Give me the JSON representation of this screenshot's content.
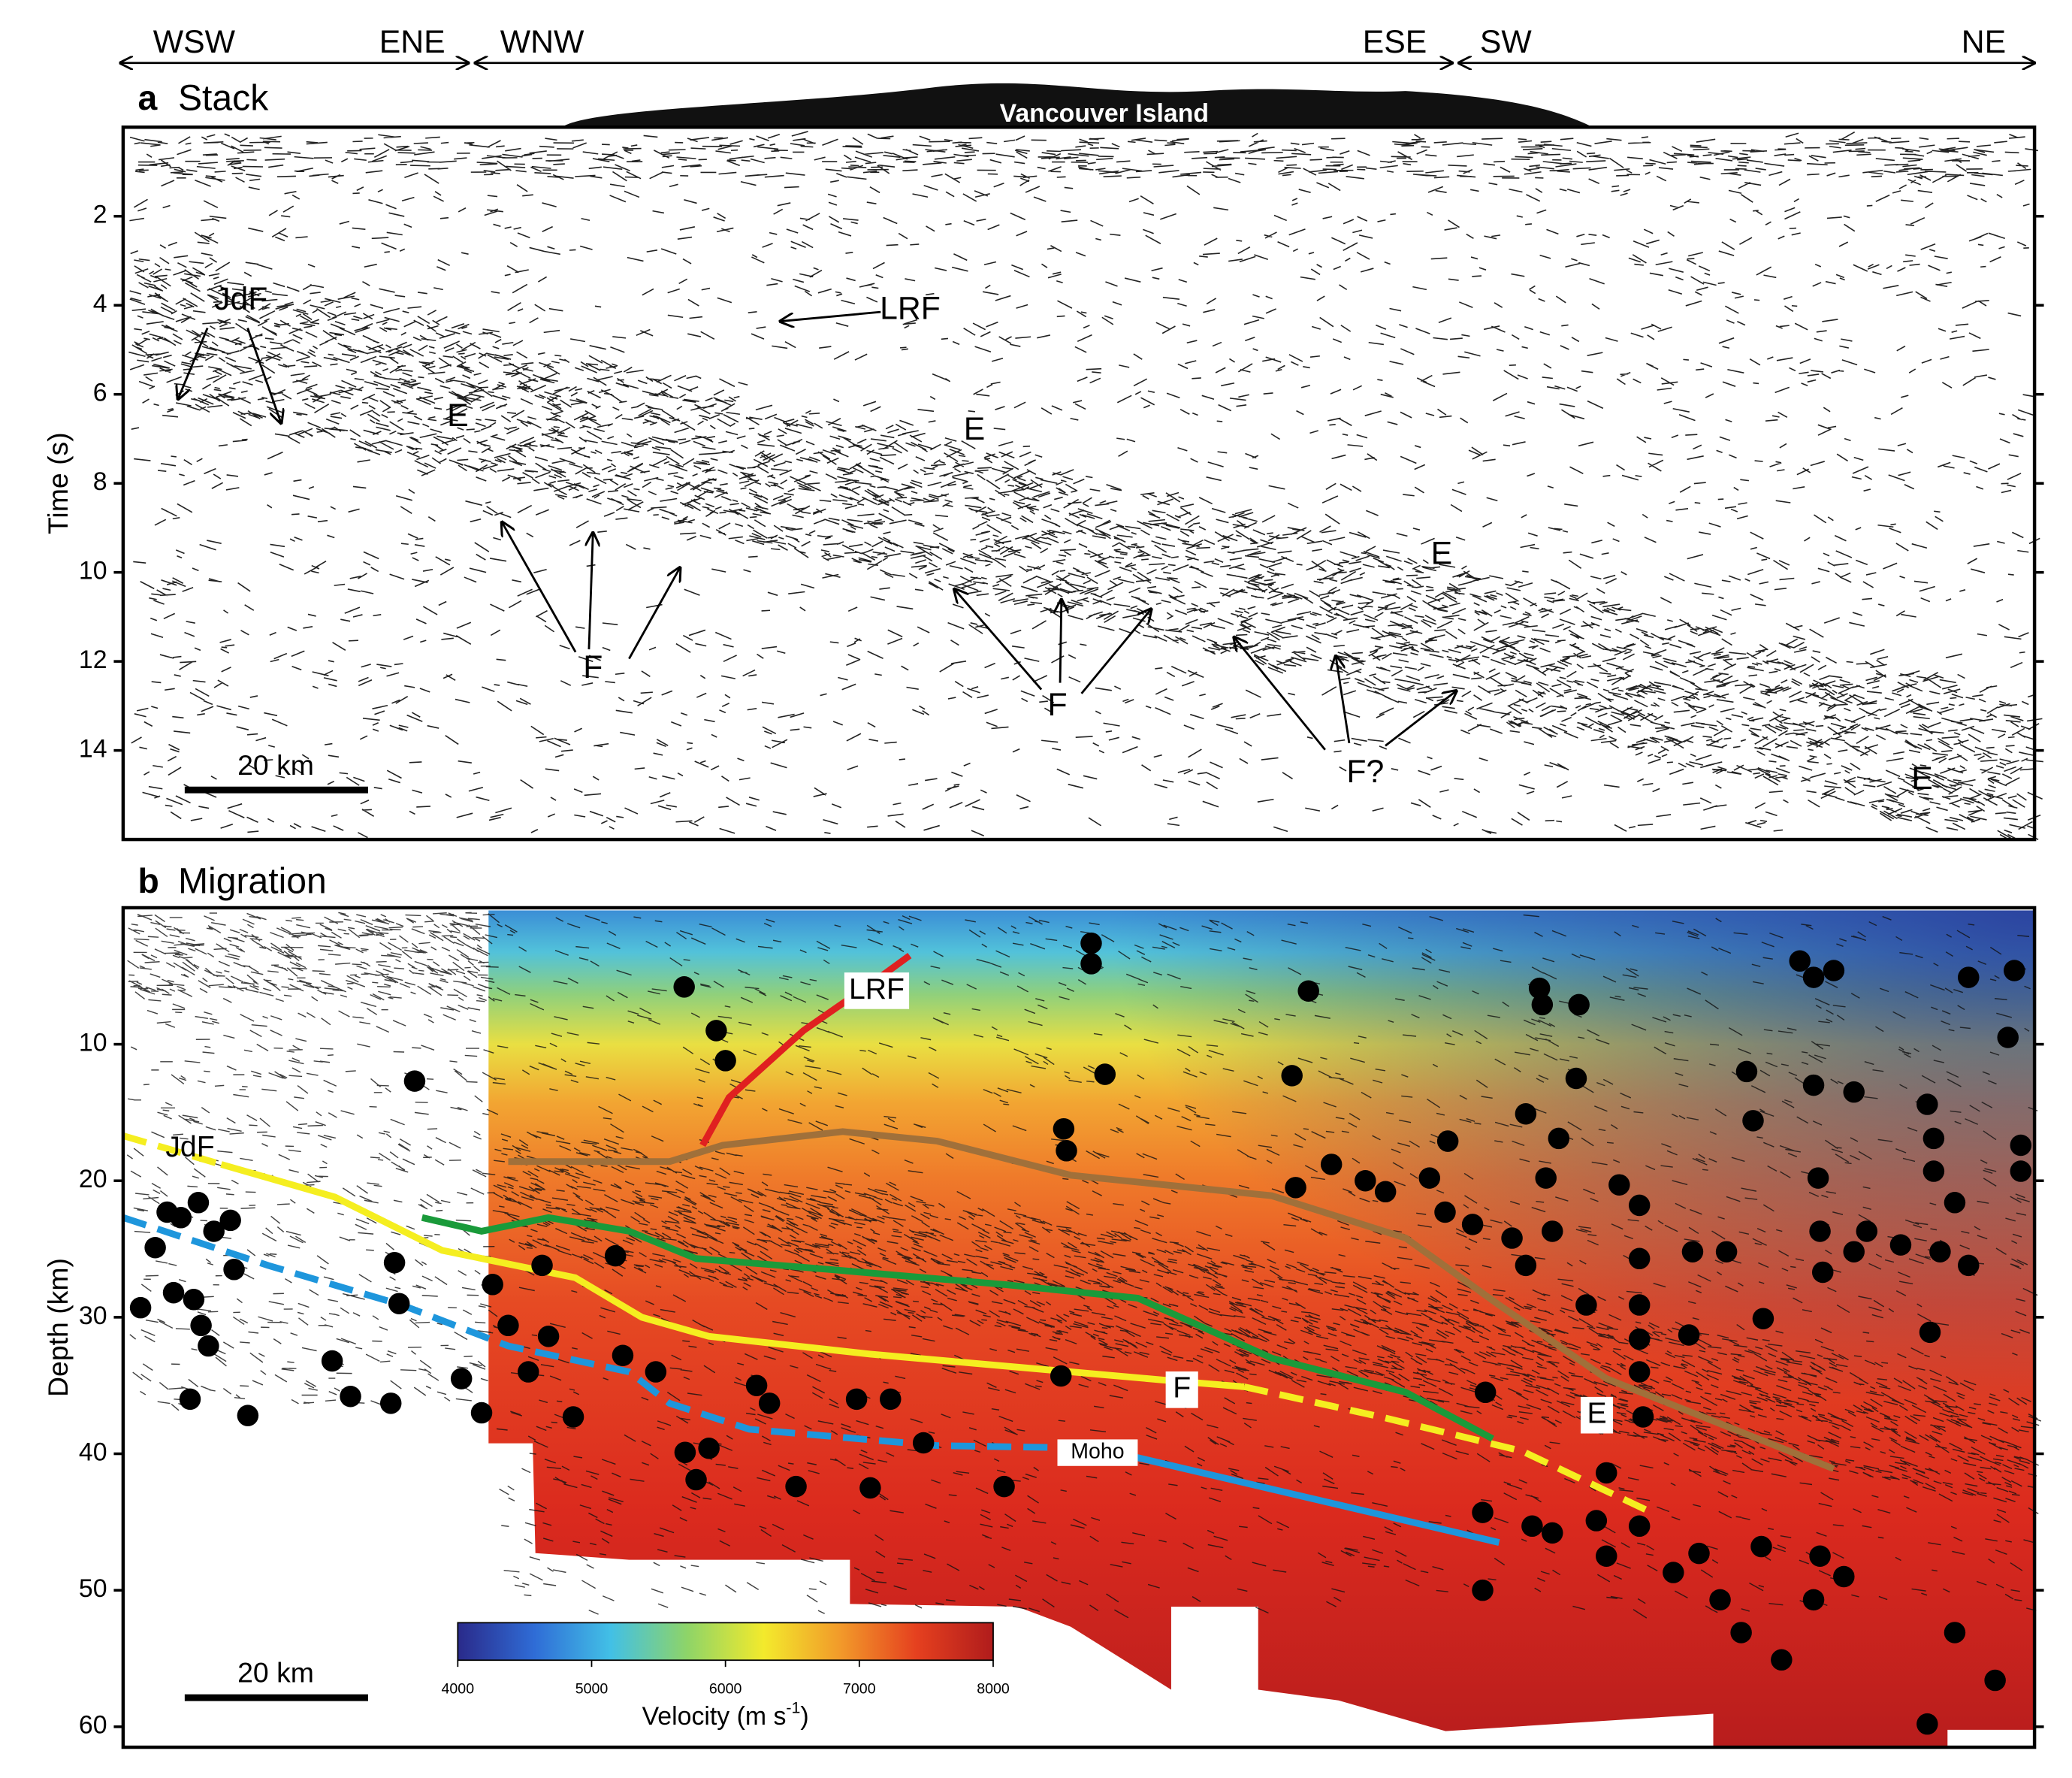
{
  "header": {
    "directions": [
      "WSW",
      "ENE",
      "WNW",
      "ESE",
      "SW",
      "NE"
    ],
    "island": "Vancouver Island"
  },
  "chart_data": [
    {
      "type": "image",
      "panel": "a",
      "title": "Stack",
      "ylabel": "Time (s)",
      "ylim": [
        0,
        16
      ],
      "yticks": [
        2,
        4,
        6,
        8,
        10,
        12,
        14
      ],
      "annotations": [
        "JdF",
        "LRF",
        "E",
        "E",
        "E",
        "E",
        "F",
        "F",
        "F?"
      ],
      "scale_bar": "20 km"
    },
    {
      "type": "scatter",
      "panel": "b",
      "title": "Migration",
      "ylabel": "Depth (km)",
      "xlim": [
        0,
        208.5
      ],
      "ylim": [
        0,
        61.5
      ],
      "yticks": [
        10,
        20,
        30,
        40,
        50,
        60
      ],
      "annotations": [
        "LRF",
        "JdF",
        "F",
        "E",
        "Moho"
      ],
      "scale_bar": "20 km",
      "colorbar": {
        "label": [
          "Velocity (m s",
          "-1",
          ")"
        ],
        "lim": [
          4000,
          8000
        ],
        "ticks": [
          4000,
          5000,
          6000,
          7000,
          8000
        ],
        "colors": [
          "#2a2a8a",
          "#2f6cd6",
          "#42c0e6",
          "#8ed468",
          "#f3ea2c",
          "#f29a2a",
          "#e5401f",
          "#b01c1c"
        ]
      },
      "lines": [
        {
          "color": "#e02020",
          "dashed": false,
          "x": [
            63.2,
            66.1,
            74.2,
            81.5,
            85.8
          ],
          "y": [
            17.4,
            13.9,
            9.0,
            5.6,
            3.5
          ]
        },
        {
          "color": "#a0703a",
          "dashed": false,
          "x": [
            42.0,
            59.6,
            65.4,
            78.5,
            88.8,
            103.4,
            125.3,
            139.9,
            150.1,
            161.8,
            186.6
          ],
          "y": [
            18.6,
            18.6,
            17.4,
            16.4,
            17.1,
            19.6,
            21.1,
            24.2,
            29.1,
            34.5,
            41.1
          ]
        },
        {
          "color": "#1a9a3a",
          "dashed": false,
          "x": [
            32.6,
            39.1,
            46.4,
            55.2,
            62.5,
            77.1,
            96.1,
            110.7,
            125.3,
            139.9,
            149.4
          ],
          "y": [
            22.7,
            23.7,
            22.7,
            23.7,
            25.7,
            26.5,
            27.6,
            28.6,
            33.0,
            35.5,
            38.9
          ]
        },
        {
          "color": "#f5ee20",
          "dashed": true,
          "x": [
            0,
            10.7
          ],
          "y": [
            16.7,
            18.8
          ]
        },
        {
          "color": "#f5ee20",
          "dashed": false,
          "x": [
            10.7,
            23.1,
            34.8,
            49.3,
            56.6,
            63.9,
            81.5,
            113.6,
            122.3
          ],
          "y": [
            18.8,
            21.2,
            25.1,
            27.1,
            30.0,
            31.4,
            32.7,
            34.6,
            35.1
          ]
        },
        {
          "color": "#f5ee20",
          "dashed": true,
          "x": [
            122.3,
            137.2,
            152.6,
            166.1
          ],
          "y": [
            35.1,
            37.3,
            39.8,
            44.1
          ]
        },
        {
          "color": "#1e96dc",
          "dashed": true,
          "x": [
            0,
            15.8,
            30.4,
            42.0,
            55.2,
            59.6,
            68.3,
            88.8,
            106.3
          ],
          "y": [
            22.7,
            26.2,
            29.1,
            32.1,
            34.0,
            36.3,
            38.2,
            39.4,
            39.6
          ]
        },
        {
          "color": "#1e96dc",
          "dashed": false,
          "x": [
            106.3,
            150.1
          ],
          "y": [
            39.6,
            46.5
          ]
        }
      ],
      "hypocenters": {
        "color": "#000000",
        "x": [
          31.8,
          1.9,
          3.5,
          4.8,
          6.3,
          8.2,
          9.9,
          11.7,
          5.5,
          7.7,
          8.5,
          9.3,
          7.3,
          13.6,
          12.1,
          22.8,
          24.8,
          29.2,
          29.6,
          30.1,
          36.9,
          39.1,
          40.3,
          42.0,
          44.2,
          45.7,
          46.4,
          49.1,
          53.7,
          54.5,
          58.1,
          61.3,
          62.5,
          63.9,
          61.2,
          64.7,
          65.7,
          69.1,
          70.5,
          73.4,
          80.0,
          81.5,
          83.7,
          87.3,
          96.1,
          102.3,
          102.6,
          102.9,
          105.6,
          105.6,
          107.1,
          127.5,
          129.3,
          127.9,
          131.8,
          135.5,
          137.7,
          144.5,
          142.5,
          144.2,
          147.2,
          148.6,
          148.3,
          148.3,
          154.5,
          154.8,
          158.8,
          153.0,
          158.5,
          156.6,
          155.2,
          151.5,
          153.0,
          155.9,
          159.6,
          163.2,
          165.4,
          165.4,
          165.4,
          165.4,
          165.4,
          165.8,
          161.8,
          165.4,
          169.1,
          170.8,
          171.2,
          174.2,
          174.9,
          177.1,
          177.8,
          178.9,
          182.9,
          184.4,
          186.6,
          184.4,
          184.9,
          185.1,
          185.4,
          188.8,
          188.8,
          190.2,
          193.9,
          196.8,
          197.5,
          197.5,
          198.2,
          197.1,
          199.8,
          201.3,
          201.3,
          205.6,
          206.3,
          207.0,
          207.0,
          199.8,
          204.2,
          196.8,
          185.1,
          187.7,
          184.4,
          180.9,
          176.5,
          178.7,
          171.9,
          161.8,
          160.7,
          155.9,
          153.7
        ],
        "y": [
          12.7,
          29.3,
          24.9,
          22.3,
          22.7,
          21.6,
          23.7,
          22.9,
          28.2,
          28.7,
          30.6,
          32.1,
          36.0,
          37.2,
          26.5,
          33.2,
          35.8,
          36.3,
          26.0,
          29.0,
          34.5,
          37.0,
          27.6,
          30.6,
          34.0,
          26.2,
          31.4,
          37.3,
          25.5,
          32.8,
          34.0,
          39.9,
          41.9,
          39.6,
          5.8,
          9.0,
          11.2,
          35.0,
          36.3,
          42.4,
          36.0,
          42.5,
          36.0,
          39.2,
          42.4,
          34.3,
          16.2,
          17.8,
          2.6,
          4.1,
          12.2,
          12.3,
          6.1,
          20.5,
          18.8,
          20.0,
          20.8,
          17.1,
          19.8,
          22.3,
          23.2,
          35.5,
          44.3,
          50.0,
          5.9,
          7.1,
          7.1,
          15.1,
          12.5,
          16.9,
          19.8,
          24.2,
          26.2,
          23.7,
          29.1,
          20.3,
          21.8,
          25.7,
          29.1,
          31.6,
          34.0,
          37.3,
          41.4,
          45.3,
          48.7,
          31.3,
          25.2,
          50.7,
          25.2,
          12.0,
          15.6,
          30.1,
          3.9,
          5.1,
          4.6,
          13.0,
          19.8,
          23.7,
          26.7,
          13.5,
          25.2,
          23.7,
          24.7,
          14.4,
          16.9,
          19.3,
          25.2,
          31.1,
          21.6,
          26.2,
          5.1,
          9.5,
          4.6,
          17.4,
          19.3,
          53.1,
          56.6,
          59.8,
          47.5,
          49.0,
          50.7,
          55.1,
          53.1,
          46.8,
          47.3,
          47.5,
          44.9,
          45.8,
          45.3
        ]
      }
    }
  ]
}
